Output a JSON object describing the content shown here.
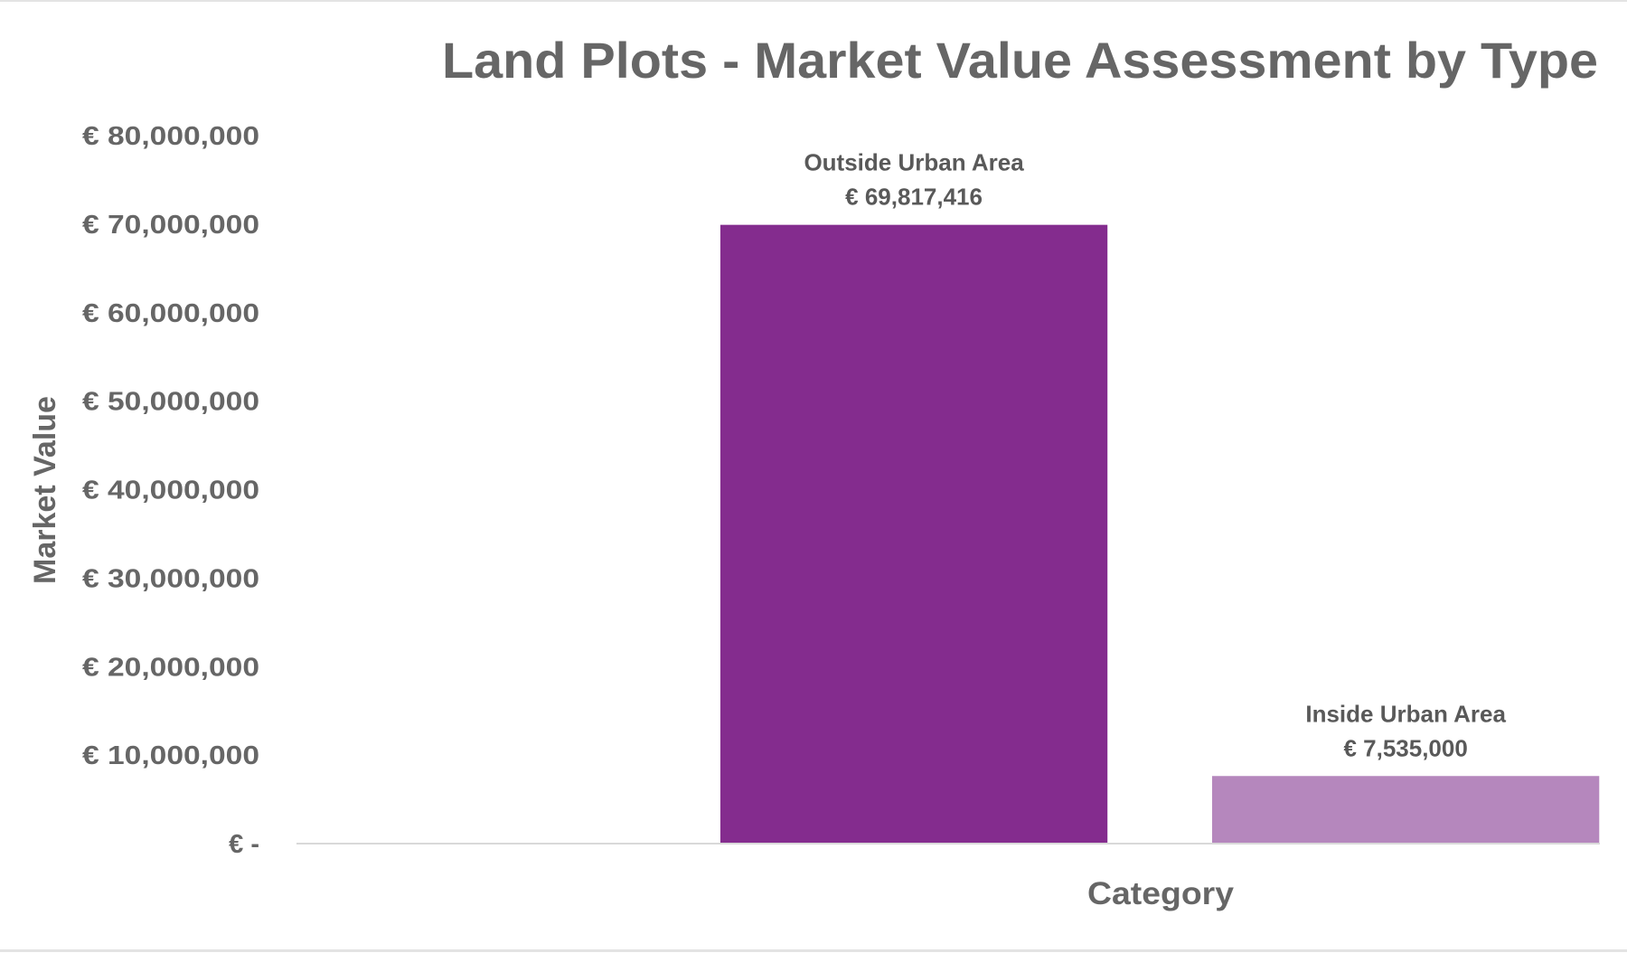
{
  "chart_data": {
    "type": "bar",
    "title": "Land Plots - Market Value Assessment by Type",
    "xlabel": "Category",
    "ylabel": "Market Value",
    "ylim": [
      0,
      80000000
    ],
    "yticks": [
      0,
      10000000,
      20000000,
      30000000,
      40000000,
      50000000,
      60000000,
      70000000,
      80000000
    ],
    "ytick_labels": [
      "€ -",
      "€ 10,000,000",
      "€ 20,000,000",
      "€ 30,000,000",
      "€ 40,000,000",
      "€ 50,000,000",
      "€ 60,000,000",
      "€ 70,000,000",
      "€ 80,000,000"
    ],
    "grid": false,
    "legend": "none",
    "categories": [
      "Outside Urban Area",
      "Inside Urban Area"
    ],
    "values": [
      69817416,
      7535000
    ],
    "data_labels": [
      "€ 69,817,416",
      "€ 7,535,000"
    ],
    "colors": [
      "#842C8E",
      "#B587BD"
    ],
    "text_color": "#666666",
    "axis_color": "#d9d9d9"
  }
}
